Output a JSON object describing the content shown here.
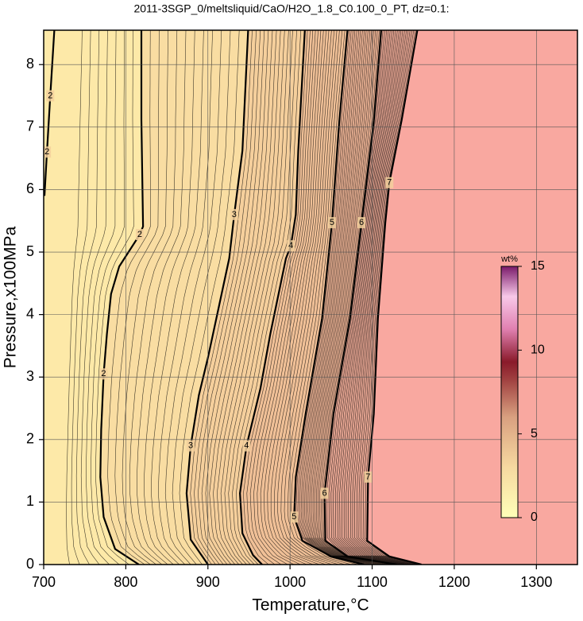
{
  "chart_data": {
    "type": "contour",
    "title": "2011-3SGP_0/meltsliquid/CaO/H2O_1.8_C0.100_0_PT, dz=0.1:",
    "x_label": "Temperature,°C",
    "y_label": "Pressure,x100MPa",
    "xlim": [
      700,
      1350
    ],
    "ylim": [
      0,
      8.55
    ],
    "xticks": [
      700,
      800,
      900,
      1000,
      1100,
      1200,
      1300
    ],
    "yticks": [
      0,
      1,
      2,
      3,
      4,
      5,
      6,
      7,
      8
    ],
    "grid": true,
    "contours": [
      {
        "level": 2,
        "x": [
          713,
          708,
          704,
          701
        ],
        "y": [
          8.55,
          7.5,
          6.6,
          5.9
        ]
      },
      {
        "level": 2,
        "x": [
          819,
          819,
          821,
          817,
          792,
          782,
          777,
          773,
          770,
          769,
          773,
          787,
          816
        ],
        "y": [
          8.55,
          7.12,
          5.41,
          5.28,
          4.77,
          4.33,
          3.69,
          3.05,
          2.16,
          1.4,
          0.76,
          0.25,
          0
        ]
      },
      {
        "level": 3,
        "x": [
          949,
          942,
          932,
          926,
          900,
          889,
          879,
          874,
          879,
          900
        ],
        "y": [
          8.55,
          6.62,
          5.6,
          4.9,
          3.31,
          2.71,
          1.9,
          1.14,
          0.4,
          0
        ]
      },
      {
        "level": 4,
        "x": [
          1018,
          1010,
          1007,
          1001,
          995,
          976,
          964,
          947,
          939,
          942,
          955,
          966
        ],
        "y": [
          8.55,
          6.62,
          5.6,
          5.1,
          4.9,
          3.69,
          2.82,
          1.9,
          1.14,
          0.5,
          0.15,
          0
        ]
      },
      {
        "level": 5,
        "x": [
          1070,
          1060,
          1051,
          1039,
          1019,
          1007,
          1005,
          1015,
          1050,
          1090
        ],
        "y": [
          8.55,
          7.1,
          5.47,
          3.94,
          2.41,
          1.4,
          0.76,
          0.38,
          0.13,
          0
        ]
      },
      {
        "level": 6,
        "x": [
          1111,
          1102,
          1087,
          1073,
          1053,
          1042,
          1043,
          1070,
          1130
        ],
        "y": [
          8.55,
          7.1,
          5.47,
          3.94,
          2.41,
          1.14,
          0.38,
          0.13,
          0
        ]
      },
      {
        "level": 7,
        "x": [
          1155,
          1136,
          1121,
          1116,
          1107,
          1102,
          1095,
          1094,
          1121,
          1160
        ],
        "y": [
          8.55,
          7.12,
          6.11,
          5.47,
          3.94,
          2.41,
          1.4,
          0.38,
          0.13,
          0
        ]
      }
    ],
    "colorbar": {
      "label": "wt%",
      "lim": [
        0,
        15
      ],
      "ticks": [
        0,
        5,
        10,
        15
      ]
    }
  }
}
